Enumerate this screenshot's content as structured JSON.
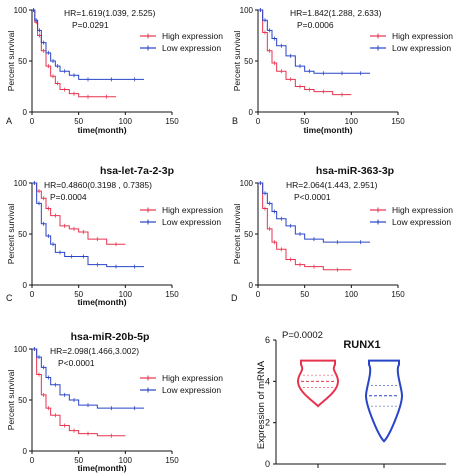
{
  "figure": {
    "panels": [
      {
        "letter": "A",
        "title": "",
        "hr": "HR=1.619(1.039, 2.525)",
        "p": "P=0.0291"
      },
      {
        "letter": "B",
        "title": "",
        "hr": "HR=1.842(1.288, 2.633)",
        "p": "P=0.0006"
      },
      {
        "letter": "C",
        "title": "hsa-let-7a-2-3p",
        "hr": "HR=0.4860(0.3198 , 0.7385)",
        "p": "P=0.0004"
      },
      {
        "letter": "D",
        "title": "hsa-miR-363-3p",
        "hr": "HR=2.064(1.443, 2.951)",
        "p": "P<0.0001"
      },
      {
        "letter": "",
        "title": "hsa-miR-20b-5p",
        "hr": "HR=2.098(1.466,3.002)",
        "p": "P<0.0001"
      }
    ],
    "violin": {
      "title": "RUNX1",
      "p": "P=0.0002",
      "ylabel": "Expression of mRNA"
    }
  },
  "colors": {
    "high": "#e8334f",
    "low": "#2844c7",
    "axis": "#111111"
  },
  "chart_data": [
    {
      "type": "line",
      "title": "",
      "panel": "A",
      "xlabel": "time(month)",
      "ylabel": "Percent survival",
      "xlim": [
        0,
        150
      ],
      "ylim": [
        0,
        100
      ],
      "xticks": [
        0,
        50,
        100,
        150
      ],
      "yticks": [
        0,
        50,
        100
      ],
      "legend": "top-right",
      "series": [
        {
          "name": "High expression",
          "x": [
            0,
            3,
            6,
            10,
            15,
            20,
            25,
            30,
            40,
            50,
            70,
            90
          ],
          "values": [
            100,
            88,
            75,
            60,
            45,
            35,
            28,
            22,
            18,
            15,
            15,
            15
          ]
        },
        {
          "name": "Low expression",
          "x": [
            0,
            3,
            6,
            10,
            15,
            20,
            25,
            30,
            40,
            50,
            70,
            100,
            120
          ],
          "values": [
            100,
            90,
            80,
            68,
            58,
            50,
            45,
            40,
            36,
            32,
            32,
            32,
            32
          ]
        }
      ]
    },
    {
      "type": "line",
      "title": "",
      "panel": "B",
      "xlabel": "time(month)",
      "ylabel": "Percent survival",
      "xlim": [
        0,
        150
      ],
      "ylim": [
        0,
        100
      ],
      "xticks": [
        0,
        50,
        100,
        150
      ],
      "yticks": [
        0,
        50,
        100
      ],
      "legend": "top-right",
      "series": [
        {
          "name": "High expression",
          "x": [
            0,
            5,
            10,
            15,
            20,
            30,
            40,
            50,
            60,
            80,
            100
          ],
          "values": [
            100,
            78,
            60,
            48,
            40,
            32,
            25,
            22,
            20,
            17,
            17
          ]
        },
        {
          "name": "Low expression",
          "x": [
            0,
            5,
            10,
            15,
            20,
            30,
            40,
            50,
            60,
            80,
            100,
            120
          ],
          "values": [
            100,
            90,
            80,
            72,
            65,
            55,
            45,
            40,
            38,
            38,
            38,
            38
          ]
        }
      ]
    },
    {
      "type": "line",
      "title": "hsa-let-7a-2-3p",
      "panel": "C",
      "xlabel": "time(month)",
      "ylabel": "Percent survival",
      "xlim": [
        0,
        150
      ],
      "ylim": [
        0,
        100
      ],
      "xticks": [
        0,
        50,
        100,
        150
      ],
      "yticks": [
        0,
        50,
        100
      ],
      "legend": "top-right",
      "series": [
        {
          "name": "High expression",
          "x": [
            0,
            5,
            10,
            15,
            20,
            30,
            40,
            50,
            60,
            80,
            100
          ],
          "values": [
            100,
            92,
            85,
            75,
            68,
            58,
            55,
            52,
            45,
            40,
            40
          ]
        },
        {
          "name": "Low expression",
          "x": [
            0,
            5,
            10,
            15,
            20,
            25,
            35,
            50,
            60,
            80,
            100,
            120
          ],
          "values": [
            100,
            80,
            60,
            48,
            40,
            32,
            28,
            28,
            20,
            18,
            18,
            18
          ]
        }
      ]
    },
    {
      "type": "line",
      "title": "hsa-miR-363-3p",
      "panel": "D",
      "xlabel": "",
      "ylabel": "Percent survival",
      "xlim": [
        0,
        150
      ],
      "ylim": [
        0,
        100
      ],
      "xticks": [
        0,
        50,
        100,
        150
      ],
      "yticks": [
        0,
        50,
        100
      ],
      "legend": "top-right",
      "series": [
        {
          "name": "High expression",
          "x": [
            0,
            5,
            10,
            15,
            20,
            30,
            40,
            50,
            70,
            100
          ],
          "values": [
            100,
            75,
            55,
            42,
            35,
            25,
            20,
            18,
            15,
            15
          ]
        },
        {
          "name": "Low expression",
          "x": [
            0,
            5,
            10,
            15,
            20,
            30,
            40,
            50,
            70,
            100,
            120
          ],
          "values": [
            100,
            90,
            80,
            72,
            65,
            58,
            50,
            45,
            42,
            42,
            42
          ]
        }
      ]
    },
    {
      "type": "line",
      "title": "hsa-miR-20b-5p",
      "panel": "",
      "xlabel": "time(month)",
      "ylabel": "Percent survival",
      "xlim": [
        0,
        150
      ],
      "ylim": [
        0,
        100
      ],
      "xticks": [
        0,
        50,
        100,
        150
      ],
      "yticks": [
        0,
        50,
        100
      ],
      "legend": "top-right",
      "series": [
        {
          "name": "High expression",
          "x": [
            0,
            5,
            10,
            15,
            20,
            30,
            40,
            50,
            70,
            100
          ],
          "values": [
            100,
            75,
            55,
            42,
            35,
            25,
            20,
            17,
            15,
            15
          ]
        },
        {
          "name": "Low expression",
          "x": [
            0,
            5,
            10,
            15,
            20,
            30,
            40,
            50,
            70,
            100,
            120
          ],
          "values": [
            100,
            92,
            82,
            72,
            65,
            55,
            50,
            45,
            42,
            42,
            42
          ]
        }
      ]
    },
    {
      "type": "violin",
      "title": "RUNX1",
      "ylabel": "Expression of mRNA",
      "ylim": [
        0,
        6
      ],
      "yticks": [
        0,
        2,
        4,
        6
      ],
      "series": [
        {
          "name": "",
          "min": 2.8,
          "max": 5.0,
          "median": 4.0,
          "q1": 3.7,
          "q3": 4.3
        },
        {
          "name": "",
          "min": 1.1,
          "max": 5.0,
          "median": 3.3,
          "q1": 2.8,
          "q3": 3.8
        }
      ]
    }
  ]
}
